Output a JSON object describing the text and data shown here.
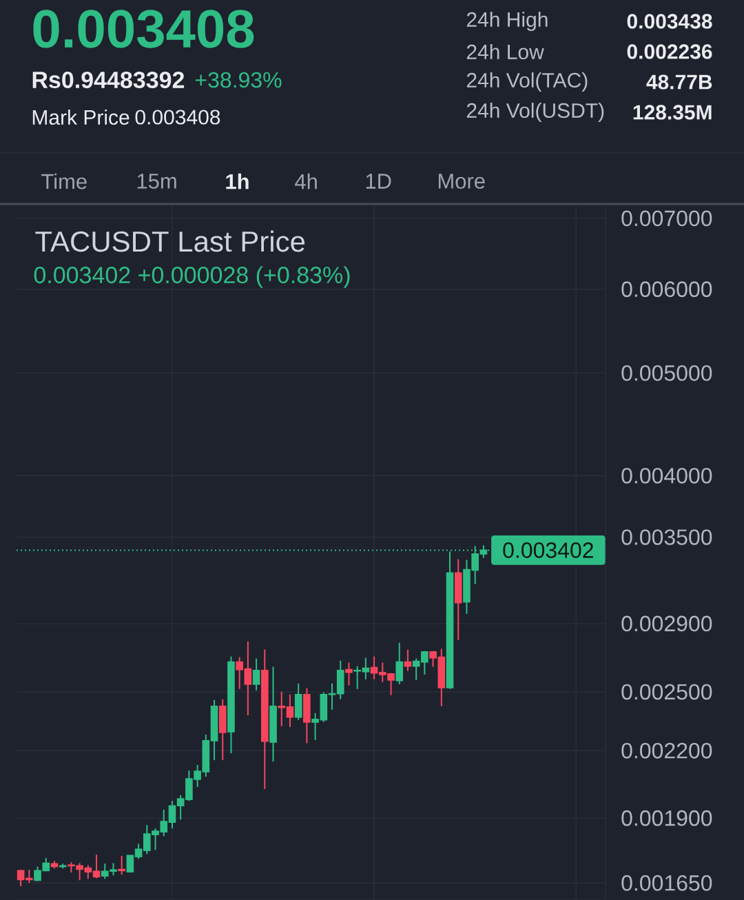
{
  "chart_data": {
    "type": "candlestick",
    "title": "TACUSDT Last Price",
    "subtitle": "0.003402 +0.000028 (+0.83%)",
    "annotations": [
      "0.003408",
      "Rs0.94483392",
      "+38.93%",
      "Mark Price",
      "0.003408",
      "24h High",
      "0.003438",
      "24h Low",
      "0.002236",
      "24h Vol(TAC)",
      "48.77B",
      "24h Vol(USDT)",
      "128.35M",
      "Time",
      "15m",
      "1h",
      "4h",
      "1D",
      "More"
    ],
    "categories": [
      null,
      null,
      null,
      null,
      null,
      null,
      null,
      null,
      null,
      null,
      null,
      null,
      null,
      null,
      null,
      null,
      null,
      null,
      null,
      null,
      null,
      null,
      null,
      null,
      null,
      null,
      null,
      null,
      null,
      null,
      null,
      null,
      null,
      null,
      null,
      null,
      null,
      null,
      null,
      null,
      null,
      null,
      null,
      null,
      null,
      null,
      null,
      null,
      null,
      null,
      null,
      null,
      null,
      null,
      null,
      null,
      null,
      null,
      null,
      null,
      null,
      null,
      null,
      null,
      null,
      null,
      null,
      null,
      null,
      null
    ],
    "ohlc": [
      [
        0.001695,
        0.001698,
        0.001638,
        0.001662
      ],
      [
        0.001667,
        0.001698,
        0.00165,
        0.001662
      ],
      [
        0.00166,
        0.00171,
        0.001657,
        0.001695
      ],
      [
        0.001695,
        0.001742,
        0.001693,
        0.001723
      ],
      [
        0.001721,
        0.001731,
        0.001703,
        0.00171
      ],
      [
        0.00171,
        0.001721,
        0.001703,
        0.001713
      ],
      [
        0.001716,
        0.001726,
        0.001688,
        0.001713
      ],
      [
        0.001713,
        0.001723,
        0.00166,
        0.0017
      ],
      [
        0.001705,
        0.001716,
        0.001665,
        0.00169
      ],
      [
        0.001693,
        0.001755,
        0.001667,
        0.001672
      ],
      [
        0.001675,
        0.001721,
        0.001665,
        0.001693
      ],
      [
        0.001693,
        0.001723,
        0.001678,
        0.001698
      ],
      [
        0.0017,
        0.00175,
        0.00168,
        0.001695
      ],
      [
        0.00169,
        0.001752,
        0.001688,
        0.001752
      ],
      [
        0.001747,
        0.001797,
        0.001739,
        0.001776
      ],
      [
        0.001771,
        0.001872,
        0.001757,
        0.001836
      ],
      [
        0.001833,
        0.001858,
        0.001773,
        0.001847
      ],
      [
        0.001844,
        0.001935,
        0.001827,
        0.001886
      ],
      [
        0.001883,
        0.001973,
        0.001858,
        0.001952
      ],
      [
        0.001952,
        0.001997,
        0.001894,
        0.001982
      ],
      [
        0.001979,
        0.002107,
        0.001973,
        0.00207
      ],
      [
        0.002067,
        0.002133,
        0.002033,
        0.002104
      ],
      [
        0.002101,
        0.002278,
        0.002079,
        0.002248
      ],
      [
        0.002248,
        0.002456,
        0.002155,
        0.002423
      ],
      [
        0.002423,
        0.00246,
        0.002155,
        0.002289
      ],
      [
        0.002292,
        0.0027,
        0.002188,
        0.002668
      ],
      [
        0.002668,
        0.002696,
        0.002516,
        0.002624
      ],
      [
        0.002628,
        0.00279,
        0.002376,
        0.002542
      ],
      [
        0.002542,
        0.002688,
        0.002508,
        0.00262
      ],
      [
        0.00262,
        0.002741,
        0.002024,
        0.002245
      ],
      [
        0.002241,
        0.00264,
        0.002149,
        0.002423
      ],
      [
        0.002423,
        0.002501,
        0.00232,
        0.002416
      ],
      [
        0.00242,
        0.002486,
        0.002316,
        0.002366
      ],
      [
        0.002366,
        0.002546,
        0.002352,
        0.002486
      ],
      [
        0.002486,
        0.00252,
        0.002236,
        0.002341
      ],
      [
        0.002341,
        0.002387,
        0.002251,
        0.002355
      ],
      [
        0.002352,
        0.002497,
        0.002341,
        0.002486
      ],
      [
        0.002486,
        0.002546,
        0.002405,
        0.00249
      ],
      [
        0.00249,
        0.002676,
        0.00246,
        0.00262
      ],
      [
        0.002624,
        0.002664,
        0.002535,
        0.002608
      ],
      [
        0.002616,
        0.002644,
        0.002516,
        0.00262
      ],
      [
        0.002612,
        0.002692,
        0.002569,
        0.002632
      ],
      [
        0.002636,
        0.0027,
        0.002569,
        0.002604
      ],
      [
        0.002608,
        0.002664,
        0.002554,
        0.002596
      ],
      [
        0.0026,
        0.002604,
        0.002482,
        0.002565
      ],
      [
        0.002562,
        0.002782,
        0.002542,
        0.002668
      ],
      [
        0.002668,
        0.002741,
        0.002616,
        0.002644
      ],
      [
        0.002644,
        0.002688,
        0.002565,
        0.002672
      ],
      [
        0.002668,
        0.002732,
        0.002596,
        0.002728
      ],
      [
        0.002728,
        0.002732,
        0.00264,
        0.002692
      ],
      [
        0.002696,
        0.002745,
        0.002423,
        0.002523
      ],
      [
        0.002523,
        0.003392,
        0.002516,
        0.003238
      ],
      [
        0.003238,
        0.003336,
        0.002799,
        0.003035
      ],
      [
        0.00304,
        0.003331,
        0.002963,
        0.003262
      ],
      [
        0.003257,
        0.003433,
        0.003161,
        0.003374
      ],
      [
        0.003374,
        0.003438,
        0.003346,
        0.003402
      ],
      null,
      null,
      null,
      null,
      null,
      null,
      null,
      null,
      null,
      null,
      null,
      null,
      null,
      null
    ],
    "colors": [
      "#f6465d",
      "#f6465d",
      "#2ebd85",
      "#2ebd85",
      "#f6465d",
      "#2ebd85",
      "#f6465d",
      "#f6465d",
      "#f6465d",
      "#f6465d",
      "#2ebd85",
      "#2ebd85",
      "#f6465d",
      "#2ebd85",
      "#2ebd85",
      "#2ebd85",
      "#2ebd85",
      "#2ebd85",
      "#2ebd85",
      "#2ebd85",
      "#2ebd85",
      "#2ebd85",
      "#2ebd85",
      "#2ebd85",
      "#f6465d",
      "#2ebd85",
      "#f6465d",
      "#f6465d",
      "#2ebd85",
      "#f6465d",
      "#2ebd85",
      "#f6465d",
      "#f6465d",
      "#2ebd85",
      "#f6465d",
      "#2ebd85",
      "#2ebd85",
      "#2ebd85",
      "#2ebd85",
      "#f6465d",
      "#2ebd85",
      "#2ebd85",
      "#f6465d",
      "#f6465d",
      "#f6465d",
      "#2ebd85",
      "#f6465d",
      "#2ebd85",
      "#2ebd85",
      "#f6465d",
      "#f6465d",
      "#2ebd85",
      "#f6465d",
      "#2ebd85",
      "#2ebd85",
      "#2ebd85",
      null,
      null,
      null,
      null,
      null,
      null,
      null,
      null,
      null,
      null,
      null,
      null,
      null,
      null
    ],
    "ylim": [
      0.00159,
      0.0072
    ],
    "yticks": [
      {
        "value": 0.00165,
        "label": "0.001650"
      },
      {
        "value": 0.0019,
        "label": "0.001900"
      },
      {
        "value": 0.0022,
        "label": "0.002200"
      },
      {
        "value": 0.0025,
        "label": "0.002500"
      },
      {
        "value": 0.0029,
        "label": "0.002900"
      },
      {
        "value": 0.0035,
        "label": "0.003500"
      },
      {
        "value": 0.004,
        "label": "0.004000"
      },
      {
        "value": 0.005,
        "label": "0.005000"
      },
      {
        "value": 0.006,
        "label": "0.006000"
      },
      {
        "value": 0.007,
        "label": "0.007000"
      }
    ],
    "log": true,
    "grid": true,
    "tick_labels": "y",
    "ref_lines": [
      {
        "axis": "y",
        "value": 0.003402,
        "label": "0.003402",
        "color": "#2ebd85",
        "line_style": "dotted"
      }
    ]
  }
}
